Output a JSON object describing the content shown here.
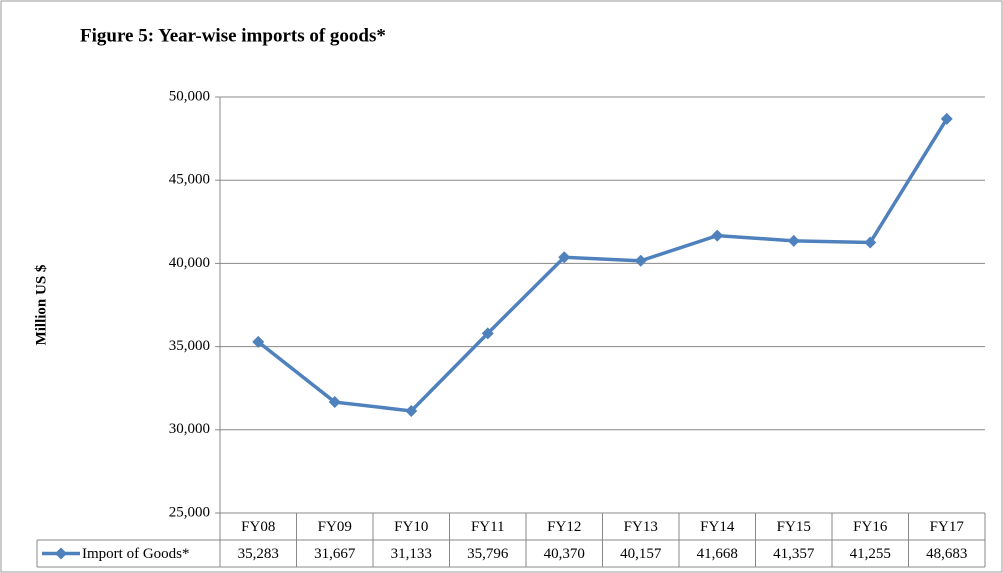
{
  "chart_data": {
    "type": "line",
    "title": "Figure 5: Year-wise imports of goods*",
    "y_label": "Million US $",
    "categories": [
      "FY08",
      "FY09",
      "FY10",
      "FY11",
      "FY12",
      "FY13",
      "FY14",
      "FY15",
      "FY16",
      "FY17"
    ],
    "series": [
      {
        "name": "Import of Goods*",
        "color": "#4f81bd",
        "values": [
          35283,
          31667,
          31133,
          35796,
          40370,
          40157,
          41668,
          41357,
          41255,
          48683
        ],
        "value_labels": [
          "35,283",
          "31,667",
          "31,133",
          "35,796",
          "40,370",
          "40,157",
          "41,668",
          "41,357",
          "41,255",
          "48,683"
        ]
      }
    ],
    "ylim": [
      25000,
      50000
    ],
    "yticks": [
      {
        "value": 25000,
        "label": "25,000"
      },
      {
        "value": 30000,
        "label": "30,000"
      },
      {
        "value": 35000,
        "label": "35,000"
      },
      {
        "value": 40000,
        "label": "40,000"
      },
      {
        "value": 45000,
        "label": "45,000"
      },
      {
        "value": 50000,
        "label": "50,000"
      }
    ],
    "grid": true,
    "data_table": true
  }
}
